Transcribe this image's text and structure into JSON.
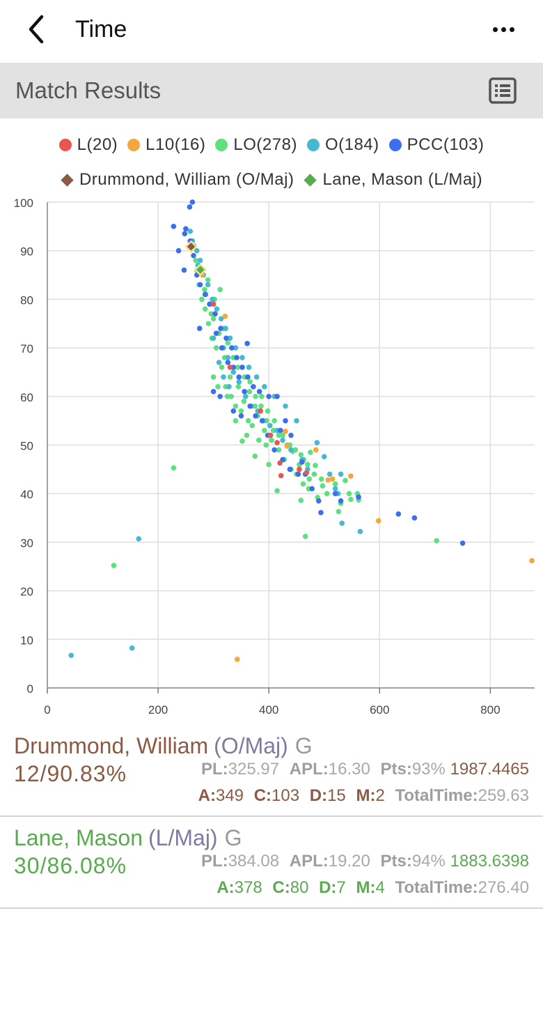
{
  "nav": {
    "title": "Time"
  },
  "header": {
    "title": "Match Results"
  },
  "legend": {
    "row1": [
      {
        "label": "L(20)",
        "color": "#e8564f"
      },
      {
        "label": "L10(16)",
        "color": "#f5a63d"
      },
      {
        "label": "LO(278)",
        "color": "#5ee07e"
      },
      {
        "label": "O(184)",
        "color": "#46b8d3"
      },
      {
        "label": "PCC(103)",
        "color": "#3c6ef0"
      }
    ],
    "row2": [
      {
        "label": "Drummond, William (O/Maj)",
        "color": "#8a5a45"
      },
      {
        "label": "Lane, Mason (L/Maj)",
        "color": "#5aaa50"
      }
    ]
  },
  "players": [
    {
      "name": "Drummond, William",
      "cls": "(O/Maj)",
      "grade": "G",
      "color": "#8a5a45",
      "score": "12/90.83%",
      "pl_k": "PL:",
      "pl": "325.97",
      "apl_k": "APL:",
      "apl": "16.30",
      "pts_k": "Pts:",
      "pts": "93%",
      "rating": "1987.4465",
      "a_k": "A:",
      "a": "349",
      "c_k": "C:",
      "c": "103",
      "d_k": "D:",
      "d": "15",
      "m_k": "M:",
      "m": "2",
      "tt_k": "TotalTime:",
      "tt": "259.63"
    },
    {
      "name": "Lane, Mason",
      "cls": "(L/Maj)",
      "grade": "G",
      "color": "#5aaa50",
      "score": "30/86.08%",
      "pl_k": "PL:",
      "pl": "384.08",
      "apl_k": "APL:",
      "apl": "19.20",
      "pts_k": "Pts:",
      "pts": "94%",
      "rating": "1883.6398",
      "a_k": "A:",
      "a": "378",
      "c_k": "C:",
      "c": "80",
      "d_k": "D:",
      "d": "7",
      "m_k": "M:",
      "m": "4",
      "tt_k": "TotalTime:",
      "tt": "276.40"
    }
  ],
  "chart_data": {
    "type": "scatter",
    "xlim": [
      0,
      880
    ],
    "ylim": [
      0,
      100
    ],
    "xticks": [
      0,
      200,
      400,
      600,
      800
    ],
    "yticks": [
      0,
      10,
      20,
      30,
      40,
      50,
      60,
      70,
      80,
      90,
      100
    ],
    "grid": true,
    "series": [
      {
        "name": "L(20)",
        "color": "#e8564f",
        "points": [
          [
            420,
            46.3
          ],
          [
            422,
            43.7
          ],
          [
            468,
            44.3
          ],
          [
            415,
            50.5
          ],
          [
            300,
            79
          ],
          [
            330,
            66
          ],
          [
            385,
            57
          ],
          [
            403,
            52
          ],
          [
            455,
            45
          ]
        ]
      },
      {
        "name": "L10(16)",
        "color": "#f5a63d",
        "points": [
          [
            343,
            5.9
          ],
          [
            598,
            34.4
          ],
          [
            875,
            26.2
          ],
          [
            321,
            76.5
          ],
          [
            430,
            52.8
          ],
          [
            433,
            49.8
          ],
          [
            485,
            49.0
          ],
          [
            507,
            42.8
          ],
          [
            548,
            43.6
          ],
          [
            515,
            43
          ],
          [
            280,
            85
          ]
        ]
      },
      {
        "name": "LO(278)",
        "color": "#5ee07e",
        "points": [
          [
            228,
            45.3
          ],
          [
            120,
            25.2
          ],
          [
            703,
            30.3
          ],
          [
            466,
            31.2
          ],
          [
            458,
            38.6
          ],
          [
            415,
            40.6
          ],
          [
            375,
            47.7
          ],
          [
            488,
            39.2
          ],
          [
            562,
            38.7
          ],
          [
            526,
            36.3
          ],
          [
            538,
            42.7
          ],
          [
            548,
            38.8
          ],
          [
            520,
            42
          ],
          [
            497,
            41.6
          ],
          [
            473,
            43
          ],
          [
            484,
            45.8
          ],
          [
            475,
            48.5
          ],
          [
            463,
            47
          ],
          [
            455,
            46
          ],
          [
            443,
            48.7
          ],
          [
            433,
            50
          ],
          [
            425,
            52
          ],
          [
            410,
            55
          ],
          [
            398,
            57
          ],
          [
            387,
            60
          ],
          [
            375,
            58
          ],
          [
            363,
            55
          ],
          [
            352,
            50.8
          ],
          [
            340,
            55
          ],
          [
            332,
            60
          ],
          [
            322,
            62
          ],
          [
            315,
            66
          ],
          [
            305,
            70
          ],
          [
            297,
            72
          ],
          [
            291,
            75
          ],
          [
            285,
            78
          ],
          [
            279,
            80
          ],
          [
            274,
            83
          ],
          [
            270,
            86
          ],
          [
            268,
            88
          ],
          [
            300,
            76
          ],
          [
            310,
            73
          ],
          [
            320,
            68
          ],
          [
            330,
            64
          ],
          [
            345,
            62
          ],
          [
            355,
            59
          ],
          [
            365,
            61
          ],
          [
            380,
            56
          ],
          [
            392,
            53
          ],
          [
            405,
            51
          ],
          [
            418,
            49
          ],
          [
            428,
            47
          ],
          [
            440,
            45
          ],
          [
            450,
            44
          ],
          [
            462,
            42
          ],
          [
            472,
            41
          ],
          [
            495,
            43
          ],
          [
            505,
            40
          ],
          [
            530,
            38
          ],
          [
            545,
            40
          ],
          [
            560,
            40
          ],
          [
            312,
            82
          ],
          [
            302,
            80
          ],
          [
            290,
            84
          ],
          [
            284,
            82
          ],
          [
            296,
            77
          ],
          [
            318,
            74
          ],
          [
            326,
            71
          ],
          [
            336,
            68
          ],
          [
            344,
            66
          ],
          [
            356,
            64
          ],
          [
            366,
            63
          ],
          [
            376,
            60
          ],
          [
            386,
            58
          ],
          [
            396,
            55
          ],
          [
            408,
            53
          ],
          [
            418,
            52
          ],
          [
            438,
            50
          ],
          [
            448,
            49
          ],
          [
            458,
            48
          ],
          [
            470,
            46
          ],
          [
            482,
            44
          ],
          [
            300,
            64
          ],
          [
            308,
            62
          ],
          [
            325,
            60
          ],
          [
            340,
            58
          ],
          [
            350,
            57
          ],
          [
            370,
            54
          ],
          [
            360,
            52
          ],
          [
            382,
            51
          ],
          [
            395,
            50
          ],
          [
            400,
            46
          ]
        ]
      },
      {
        "name": "O(184)",
        "color": "#46b8d3",
        "points": [
          [
            43,
            6.7
          ],
          [
            153,
            8.2
          ],
          [
            165,
            30.7
          ],
          [
            565,
            32.2
          ],
          [
            532,
            33.9
          ],
          [
            530,
            44
          ],
          [
            500,
            47.6
          ],
          [
            487,
            50.5
          ],
          [
            470,
            45
          ],
          [
            450,
            55
          ],
          [
            430,
            58
          ],
          [
            410,
            60
          ],
          [
            392,
            62
          ],
          [
            378,
            64
          ],
          [
            364,
            66
          ],
          [
            352,
            68
          ],
          [
            340,
            70
          ],
          [
            330,
            72
          ],
          [
            322,
            74
          ],
          [
            314,
            76
          ],
          [
            306,
            78
          ],
          [
            298,
            80
          ],
          [
            290,
            83
          ],
          [
            282,
            85
          ],
          [
            276,
            88
          ],
          [
            270,
            90
          ],
          [
            262,
            92
          ],
          [
            258,
            94
          ],
          [
            265,
            91
          ],
          [
            272,
            87
          ],
          [
            286,
            81
          ],
          [
            294,
            79
          ],
          [
            318,
            70
          ],
          [
            326,
            68
          ],
          [
            336,
            65
          ],
          [
            346,
            63
          ],
          [
            358,
            60
          ],
          [
            368,
            58
          ],
          [
            380,
            57
          ],
          [
            390,
            55
          ],
          [
            402,
            54
          ],
          [
            415,
            53
          ],
          [
            425,
            51
          ],
          [
            440,
            49
          ],
          [
            460,
            47
          ],
          [
            510,
            44
          ],
          [
            520,
            41
          ],
          [
            525,
            40
          ],
          [
            318,
            64
          ],
          [
            328,
            62
          ],
          [
            300,
            72
          ],
          [
            310,
            67
          ]
        ]
      },
      {
        "name": "PCC(103)",
        "color": "#3c6ef0",
        "points": [
          [
            262,
            100
          ],
          [
            257,
            99
          ],
          [
            228,
            95
          ],
          [
            248,
            93.5
          ],
          [
            250,
            94.5
          ],
          [
            237,
            90
          ],
          [
            247,
            86
          ],
          [
            275,
            74
          ],
          [
            361,
            70.9
          ],
          [
            750,
            29.8
          ],
          [
            663,
            35
          ],
          [
            634,
            35.8
          ],
          [
            562,
            39.3
          ],
          [
            530,
            38.5
          ],
          [
            520,
            40
          ],
          [
            494,
            36.1
          ],
          [
            490,
            38.5
          ],
          [
            478,
            41
          ],
          [
            466,
            44
          ],
          [
            460,
            46.5
          ],
          [
            453,
            44
          ],
          [
            440,
            52
          ],
          [
            430,
            55
          ],
          [
            421,
            53
          ],
          [
            415,
            60
          ],
          [
            400,
            60
          ],
          [
            383,
            61
          ],
          [
            372,
            62
          ],
          [
            362,
            64
          ],
          [
            352,
            66
          ],
          [
            342,
            68
          ],
          [
            333,
            70
          ],
          [
            323,
            72
          ],
          [
            313,
            74
          ],
          [
            303,
            77
          ],
          [
            293,
            79
          ],
          [
            285,
            81
          ],
          [
            276,
            83
          ],
          [
            270,
            85
          ],
          [
            264,
            89
          ],
          [
            258,
            92
          ],
          [
            305,
            73
          ],
          [
            315,
            70
          ],
          [
            326,
            67
          ],
          [
            336,
            66
          ],
          [
            346,
            64
          ],
          [
            356,
            61
          ],
          [
            366,
            58
          ],
          [
            376,
            56
          ],
          [
            388,
            55
          ],
          [
            398,
            52
          ],
          [
            410,
            49
          ],
          [
            425,
            47
          ],
          [
            438,
            45
          ],
          [
            300,
            61
          ],
          [
            312,
            60
          ],
          [
            336,
            57
          ],
          [
            350,
            56
          ]
        ]
      }
    ],
    "highlights": [
      {
        "name": "Drummond, William (O/Maj)",
        "x": 259.63,
        "y": 90.83,
        "fill": "#8a5a45",
        "stroke": "#f0e68c"
      },
      {
        "name": "Lane, Mason (L/Maj)",
        "x": 276.4,
        "y": 86.08,
        "fill": "#5aaa50",
        "stroke": "#f0e68c"
      }
    ]
  }
}
